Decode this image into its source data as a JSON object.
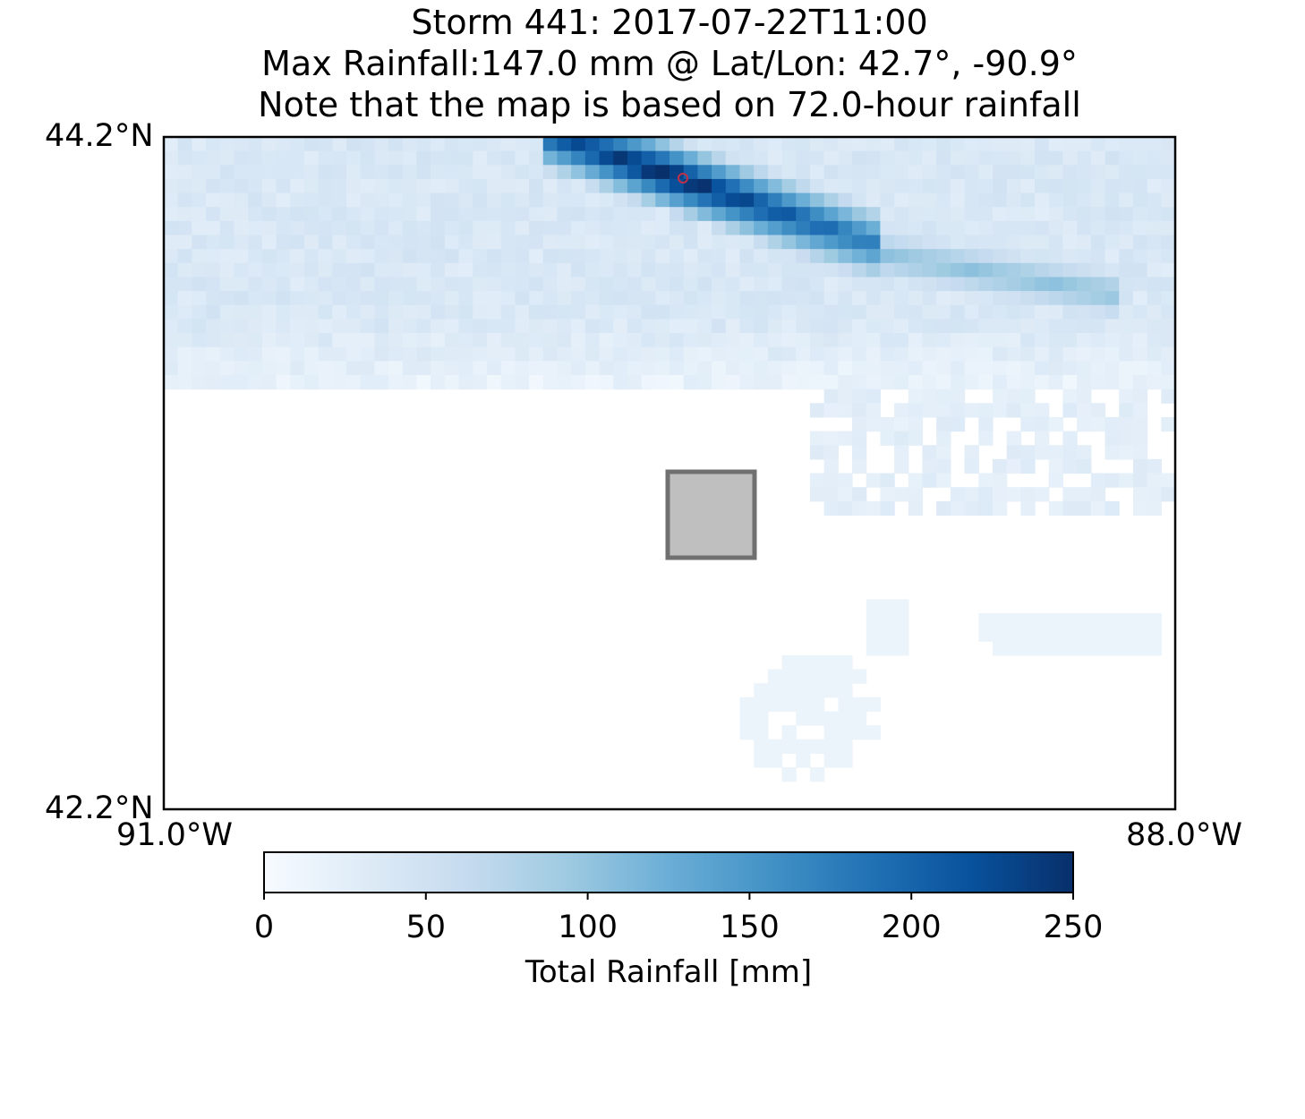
{
  "title": {
    "line1": "Storm 441: 2017-07-22T11:00",
    "line2": "Max Rainfall:147.0 mm @ Lat/Lon:  42.7°, -90.9°",
    "line3": "Note that the map is based on 72.0-hour rainfall"
  },
  "map": {
    "lat_top_label": "44.2°N",
    "lat_bottom_label": "42.2°N",
    "lon_left_label": "91.0°W",
    "lon_right_label": "88.0°W",
    "extent": {
      "lat_min": 42.2,
      "lat_max": 44.2,
      "lon_min": -91.0,
      "lon_max": -88.0
    },
    "colormap": "Blues",
    "max_marker_color": "#c0304a",
    "box_fill": "#bfbfbf",
    "box_stroke": "#707070"
  },
  "colorbar": {
    "label": "Total Rainfall [mm]",
    "min": 0,
    "max": 250,
    "ticks": [
      "0",
      "50",
      "100",
      "150",
      "200",
      "250"
    ]
  }
}
